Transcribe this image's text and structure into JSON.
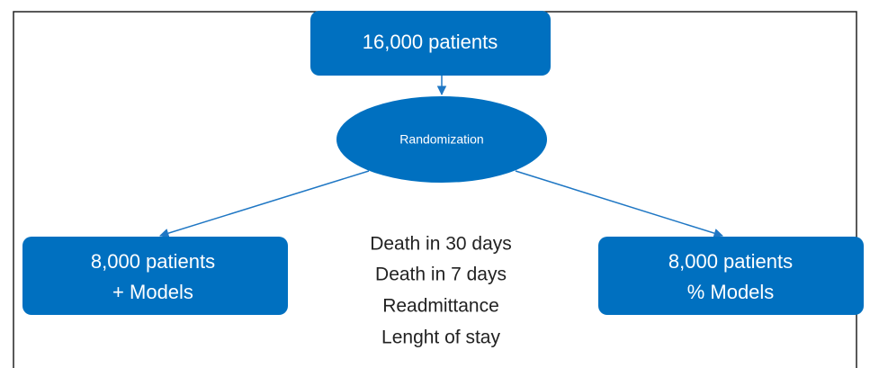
{
  "nodes": [
    {
      "lines": [
        "16,000 patients"
      ]
    },
    {
      "lines": [
        "Randomization"
      ]
    },
    {
      "lines": [
        "8,000 patients",
        "+ Models"
      ]
    },
    {
      "lines": [
        "8,000 patients",
        "% Models"
      ]
    }
  ],
  "outcomes": [
    "Death in 30 days",
    "Death in 7 days",
    "Readmittance",
    "Lenght of stay"
  ]
}
